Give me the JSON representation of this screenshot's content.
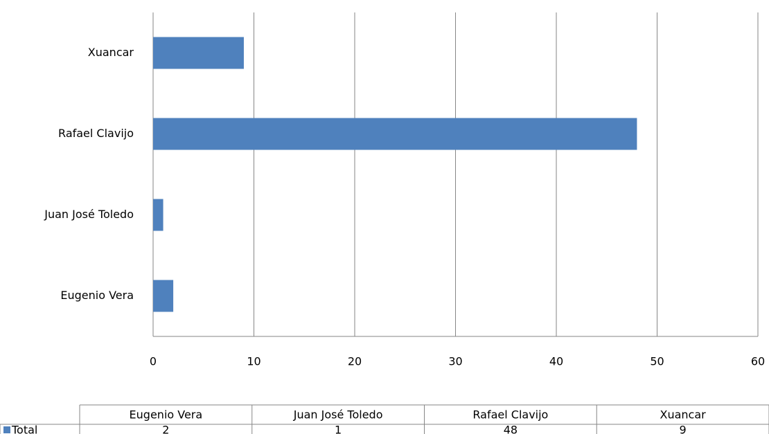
{
  "chart_data": {
    "type": "barh",
    "categories": [
      "Eugenio Vera",
      "Juan José Toledo",
      "Rafael Clavijo",
      "Xuancar"
    ],
    "series": [
      {
        "name": "Total",
        "color": "#4f81bd",
        "values": [
          2,
          1,
          48,
          9
        ]
      }
    ],
    "xlim": [
      0,
      60
    ],
    "xticks": [
      0,
      10,
      20,
      30,
      40,
      50,
      60
    ],
    "grid": true
  }
}
